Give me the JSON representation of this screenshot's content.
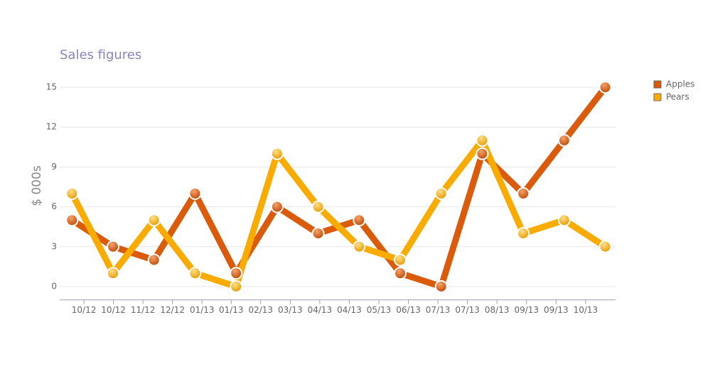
{
  "chart_data": {
    "type": "line",
    "title": "Sales figures",
    "y_label": "$ 000s",
    "x": [
      0,
      1,
      2,
      3,
      4,
      5,
      6,
      7,
      8,
      9,
      10,
      11,
      12,
      13
    ],
    "series": [
      {
        "name": "Apples",
        "color": "#d95b0b",
        "values": [
          5,
          3,
          2,
          7,
          1,
          6,
          4,
          5,
          1,
          0,
          10,
          7,
          11,
          15
        ]
      },
      {
        "name": "Pears",
        "color": "#f9ab00",
        "values": [
          7,
          1,
          5,
          1,
          0,
          10,
          6,
          3,
          2,
          7,
          11,
          4,
          5,
          3
        ]
      }
    ],
    "xlim": [
      -0.3,
      13.25
    ],
    "xticks": [
      {
        "value": 0.29,
        "label": "10/12"
      },
      {
        "value": 1.01,
        "label": "10/12"
      },
      {
        "value": 1.73,
        "label": "11/12"
      },
      {
        "value": 2.45,
        "label": "12/12"
      },
      {
        "value": 3.17,
        "label": "01/13"
      },
      {
        "value": 3.88,
        "label": "01/13"
      },
      {
        "value": 4.6,
        "label": "02/13"
      },
      {
        "value": 5.32,
        "label": "03/13"
      },
      {
        "value": 6.04,
        "label": "04/13"
      },
      {
        "value": 6.76,
        "label": "04/13"
      },
      {
        "value": 7.48,
        "label": "05/13"
      },
      {
        "value": 8.2,
        "label": "06/13"
      },
      {
        "value": 8.92,
        "label": "07/13"
      },
      {
        "value": 9.64,
        "label": "07/13"
      },
      {
        "value": 10.36,
        "label": "08/13"
      },
      {
        "value": 11.08,
        "label": "09/13"
      },
      {
        "value": 11.8,
        "label": "09/13"
      },
      {
        "value": 12.52,
        "label": "10/13"
      }
    ],
    "ylim": [
      -1,
      15.5
    ],
    "yticks": [
      0,
      3,
      6,
      9,
      12,
      15
    ],
    "grid": true,
    "legend": "top-right"
  }
}
